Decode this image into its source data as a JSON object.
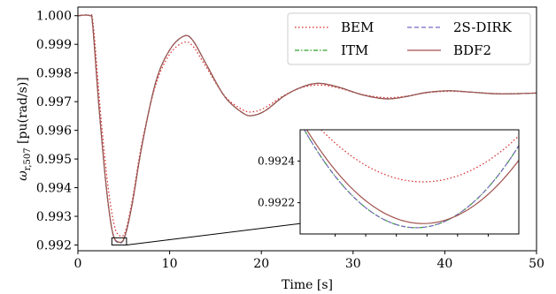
{
  "chart_data": {
    "type": "line",
    "xlabel": "Time [s]",
    "ylabel": "ω_{r,507} [pu(rad/s)]",
    "ylabel_main": "ω",
    "ylabel_sub": "r,507",
    "ylabel_unit": " [pu(rad/s)]",
    "xlim": [
      0,
      50
    ],
    "ylim": [
      0.9918,
      1.0003
    ],
    "xticks": [
      0,
      10,
      20,
      30,
      40,
      50
    ],
    "yticks": [
      0.992,
      0.993,
      0.994,
      0.995,
      0.996,
      0.997,
      0.998,
      0.999,
      1.0
    ],
    "xtick_labels": [
      "0",
      "10",
      "20",
      "30",
      "40",
      "50"
    ],
    "ytick_labels": [
      "0.992",
      "0.993",
      "0.994",
      "0.995",
      "0.996",
      "0.997",
      "0.998",
      "0.999",
      "1.000"
    ],
    "grid": false,
    "legend": {
      "placement": "top-right",
      "columns": 2
    },
    "series": [
      {
        "name": "BEM",
        "color": "#d62728",
        "style": "dotted",
        "points": [
          [
            0,
            1.0
          ],
          [
            1.3,
            1.0
          ],
          [
            1.7,
            0.9996
          ],
          [
            2.5,
            0.9965
          ],
          [
            3.3,
            0.994
          ],
          [
            4.0,
            0.99265
          ],
          [
            4.6,
            0.99232
          ],
          [
            5.2,
            0.9925
          ],
          [
            6.0,
            0.9937
          ],
          [
            7.0,
            0.9956
          ],
          [
            8.5,
            0.9976
          ],
          [
            10.0,
            0.99865
          ],
          [
            11.5,
            0.99906
          ],
          [
            12.5,
            0.99895
          ],
          [
            14.0,
            0.9982
          ],
          [
            16.0,
            0.9972
          ],
          [
            18.0,
            0.99671
          ],
          [
            19.2,
            0.99665
          ],
          [
            20.5,
            0.99681
          ],
          [
            22.5,
            0.99722
          ],
          [
            24.5,
            0.9975
          ],
          [
            26.5,
            0.99758
          ],
          [
            28.5,
            0.99747
          ],
          [
            31.0,
            0.99725
          ],
          [
            33.5,
            0.99714
          ],
          [
            35.5,
            0.99718
          ],
          [
            38.0,
            0.99731
          ],
          [
            40.5,
            0.99736
          ],
          [
            43.0,
            0.99733
          ],
          [
            46.0,
            0.99728
          ],
          [
            50.0,
            0.9973
          ]
        ]
      },
      {
        "name": "ITM",
        "color": "#2ca02c",
        "style": "dashdot",
        "points": [
          [
            0,
            1.0
          ],
          [
            1.3,
            1.0
          ],
          [
            1.6,
            0.9997
          ],
          [
            2.3,
            0.9968
          ],
          [
            3.1,
            0.994
          ],
          [
            3.8,
            0.9924
          ],
          [
            4.5,
            0.99208
          ],
          [
            5.1,
            0.99228
          ],
          [
            5.9,
            0.9934
          ],
          [
            7.0,
            0.9955
          ],
          [
            8.5,
            0.9977
          ],
          [
            10.0,
            0.9988
          ],
          [
            11.5,
            0.99928
          ],
          [
            12.5,
            0.99915
          ],
          [
            14.0,
            0.9983
          ],
          [
            16.0,
            0.99718
          ],
          [
            18.0,
            0.9966
          ],
          [
            19.1,
            0.99652
          ],
          [
            20.5,
            0.9967
          ],
          [
            22.5,
            0.9972
          ],
          [
            24.5,
            0.99752
          ],
          [
            26.3,
            0.99764
          ],
          [
            28.5,
            0.9975
          ],
          [
            31.0,
            0.99724
          ],
          [
            33.5,
            0.9971
          ],
          [
            35.5,
            0.99716
          ],
          [
            38.0,
            0.99732
          ],
          [
            40.5,
            0.99738
          ],
          [
            43.0,
            0.99733
          ],
          [
            46.0,
            0.99727
          ],
          [
            50.0,
            0.9973
          ]
        ]
      },
      {
        "name": "2S-DIRK",
        "color": "#7b68c4",
        "style": "dashed",
        "points": [
          [
            0,
            1.0
          ],
          [
            1.3,
            1.0
          ],
          [
            1.6,
            0.9997
          ],
          [
            2.3,
            0.9968
          ],
          [
            3.1,
            0.994
          ],
          [
            3.8,
            0.9924
          ],
          [
            4.5,
            0.99208
          ],
          [
            5.1,
            0.99228
          ],
          [
            5.9,
            0.9934
          ],
          [
            7.0,
            0.9955
          ],
          [
            8.5,
            0.9977
          ],
          [
            10.0,
            0.9988
          ],
          [
            11.5,
            0.99928
          ],
          [
            12.5,
            0.99915
          ],
          [
            14.0,
            0.9983
          ],
          [
            16.0,
            0.99718
          ],
          [
            18.0,
            0.9966
          ],
          [
            19.1,
            0.99652
          ],
          [
            20.5,
            0.9967
          ],
          [
            22.5,
            0.9972
          ],
          [
            24.5,
            0.99752
          ],
          [
            26.3,
            0.99764
          ],
          [
            28.5,
            0.9975
          ],
          [
            31.0,
            0.99724
          ],
          [
            33.5,
            0.9971
          ],
          [
            35.5,
            0.99716
          ],
          [
            38.0,
            0.99732
          ],
          [
            40.5,
            0.99738
          ],
          [
            43.0,
            0.99733
          ],
          [
            46.0,
            0.99727
          ],
          [
            50.0,
            0.9973
          ]
        ]
      },
      {
        "name": "BDF2",
        "color": "#a0524d",
        "style": "solid",
        "points": [
          [
            0,
            1.0
          ],
          [
            1.3,
            1.0
          ],
          [
            1.6,
            0.9997
          ],
          [
            2.3,
            0.9968
          ],
          [
            3.1,
            0.994
          ],
          [
            3.8,
            0.99242
          ],
          [
            4.5,
            0.9921
          ],
          [
            5.1,
            0.9923
          ],
          [
            5.9,
            0.9934
          ],
          [
            7.0,
            0.9955
          ],
          [
            8.5,
            0.9977
          ],
          [
            10.0,
            0.9988
          ],
          [
            11.5,
            0.99928
          ],
          [
            12.5,
            0.99915
          ],
          [
            14.0,
            0.9983
          ],
          [
            16.0,
            0.99718
          ],
          [
            18.0,
            0.9966
          ],
          [
            19.1,
            0.99652
          ],
          [
            20.5,
            0.9967
          ],
          [
            22.5,
            0.9972
          ],
          [
            24.5,
            0.99752
          ],
          [
            26.3,
            0.99764
          ],
          [
            28.5,
            0.9975
          ],
          [
            31.0,
            0.99724
          ],
          [
            33.5,
            0.9971
          ],
          [
            35.5,
            0.99716
          ],
          [
            38.0,
            0.99732
          ],
          [
            40.5,
            0.99738
          ],
          [
            43.0,
            0.99733
          ],
          [
            46.0,
            0.99727
          ],
          [
            50.0,
            0.9973
          ]
        ]
      }
    ],
    "inset": {
      "xlim": [
        3.7,
        5.3
      ],
      "ylim": [
        0.99205,
        0.99255
      ],
      "yticks": [
        0.9922,
        0.9924
      ],
      "ytick_labels": [
        "0.9922",
        "0.9924"
      ],
      "zoom_box": {
        "x": [
          3.7,
          5.3
        ],
        "y": [
          0.992,
          0.99225
        ]
      },
      "curves": [
        {
          "series": "BEM",
          "x0": 4.6,
          "y0": 0.9923,
          "a": 0.00045,
          "color": "#d62728",
          "style": "dotted"
        },
        {
          "series": "ITM",
          "x0": 4.55,
          "y0": 0.99208,
          "a": 0.0007,
          "color": "#2ca02c",
          "style": "dashdot"
        },
        {
          "series": "2S-DIRK",
          "x0": 4.55,
          "y0": 0.99208,
          "a": 0.0007,
          "color": "#7b68c4",
          "style": "dashed"
        },
        {
          "series": "BDF2",
          "x0": 4.6,
          "y0": 0.9921,
          "a": 0.00062,
          "color": "#a0524d",
          "style": "solid"
        }
      ]
    }
  }
}
